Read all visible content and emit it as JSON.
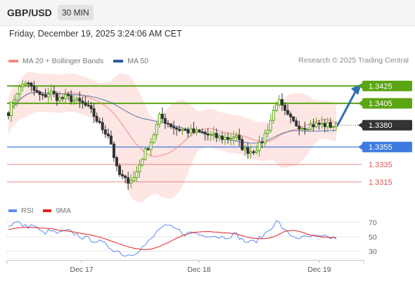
{
  "header": {
    "symbol": "GBP/USD",
    "timeframe": "30 MIN"
  },
  "datetime": "Friday, December 19, 2025 3:24:06 AM CET",
  "legend": {
    "ma20_label": "MA 20 + Bollinger Bands",
    "ma50_label": "MA 50",
    "ma20_color": "#f28b82",
    "ma50_color": "#2d5b9a"
  },
  "copyright": "Research © 2025 Trading Central",
  "rsi_legend": {
    "rsi_label": "RSI",
    "ma_label": "9MA",
    "rsi_color": "#5b8def",
    "ma_color": "#e02020"
  },
  "colors": {
    "resistance": "#5ba513",
    "current": "#333333",
    "support": "#3d7be0",
    "support_minor": "#e05555",
    "arrow": "#2d6fb4",
    "bullish": "#5ba513",
    "bearish": "#333333",
    "bollinger_fill": "#fde2df"
  },
  "chart_data": [
    {
      "type": "line",
      "chart_kind": "candlestick",
      "y_range": [
        1.3298,
        1.3443
      ],
      "x_tick_labels": [
        "Dec 17",
        "Dec 18",
        "Dec 19"
      ],
      "price_levels": [
        {
          "value": 1.3425,
          "label": "1.3425",
          "kind": "resistance"
        },
        {
          "value": 1.3405,
          "label": "1.3405",
          "kind": "resistance"
        },
        {
          "value": 1.338,
          "label": "1.3380",
          "kind": "current"
        },
        {
          "value": 1.3355,
          "label": "1.3355",
          "kind": "support"
        },
        {
          "value": 1.3335,
          "label": "1.3335",
          "kind": "support_minor"
        },
        {
          "value": 1.3315,
          "label": "1.3315",
          "kind": "support_minor"
        }
      ],
      "forecast_arrow": {
        "from": 1.338,
        "to": 1.3422
      },
      "series": [
        {
          "name": "MA 20 + Bollinger Bands"
        },
        {
          "name": "MA 50"
        }
      ],
      "close_path": [
        1.3395,
        1.3418,
        1.343,
        1.342,
        1.3412,
        1.3418,
        1.341,
        1.3412,
        1.3408,
        1.3404,
        1.3394,
        1.3378,
        1.3368,
        1.3325,
        1.3316,
        1.332,
        1.3345,
        1.3362,
        1.339,
        1.3382,
        1.3376,
        1.3374,
        1.3372,
        1.3371,
        1.3368,
        1.3366,
        1.3365,
        1.3368,
        1.3352,
        1.335,
        1.3358,
        1.338,
        1.341,
        1.3392,
        1.3382,
        1.3378,
        1.338,
        1.3381,
        1.338,
        1.3379
      ]
    },
    {
      "type": "line",
      "title": "RSI",
      "y_range": [
        20,
        80
      ],
      "y_ticks": [
        70,
        50,
        30
      ],
      "series": [
        {
          "name": "RSI",
          "values": [
            66,
            70,
            64,
            66,
            55,
            58,
            54,
            58,
            54,
            48,
            46,
            42,
            36,
            30,
            24,
            28,
            36,
            46,
            62,
            64,
            60,
            54,
            56,
            52,
            53,
            50,
            50,
            54,
            44,
            42,
            48,
            60,
            72,
            56,
            50,
            48,
            50,
            49,
            49,
            48
          ]
        },
        {
          "name": "9MA",
          "values": [
            60,
            62,
            63,
            63,
            62,
            61,
            59,
            58,
            56,
            54,
            52,
            49,
            45,
            41,
            37,
            34,
            32,
            33,
            37,
            42,
            48,
            53,
            56,
            57,
            57,
            56,
            55,
            54,
            51,
            48,
            47,
            48,
            52,
            58,
            59,
            56,
            52,
            50,
            49,
            49
          ]
        }
      ]
    }
  ]
}
